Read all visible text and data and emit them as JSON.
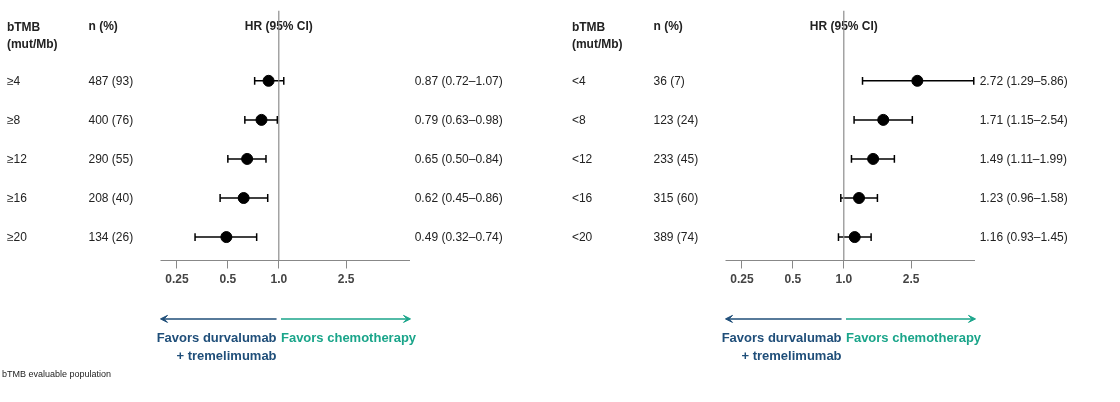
{
  "chart_data": [
    {
      "type": "scatter",
      "title": "HR (95% CI)",
      "ylabel": "bTMB\n(mut/Mb)",
      "orientation": "horizontal",
      "log": "x",
      "marker": "circle",
      "color": "#000000",
      "tick_labels": "x",
      "categories": [
        "≥4",
        "≥8",
        "≥12",
        "≥16",
        "≥20"
      ],
      "values": [
        0.87,
        0.79,
        0.65,
        0.62,
        0.49
      ],
      "errors": [
        [
          0.72,
          1.07
        ],
        [
          0.63,
          0.98
        ],
        [
          0.5,
          0.84
        ],
        [
          0.45,
          0.86
        ],
        [
          0.32,
          0.74
        ]
      ],
      "value_labels": [
        "0.87 (0.72–1.07)",
        "0.79 (0.63–0.98)",
        "0.65 (0.50–0.84)",
        "0.62 (0.45–0.86)",
        "0.49 (0.32–0.74)"
      ],
      "xlim": [
        0.2,
        6.0
      ],
      "xticks": [
        0.25,
        0.5,
        {
          "value": 1,
          "label": "1.0"
        },
        2.5
      ],
      "ref_lines": [
        {
          "axis": "x",
          "value": 1,
          "color": "#8c8c8c"
        }
      ],
      "annotations": [
        "n (%)",
        "487 (93)",
        "400 (76)",
        "290 (55)",
        "208 (40)",
        "134 (26)",
        "Favors durvalumab\n+ tremelimumab",
        "Favors chemotherapy",
        "bTMB evaluable population"
      ]
    },
    {
      "type": "scatter",
      "title": "HR (95% CI)",
      "ylabel": "bTMB\n(mut/Mb)",
      "orientation": "horizontal",
      "log": "x",
      "marker": "circle",
      "color": "#000000",
      "tick_labels": "x",
      "categories": [
        "<4",
        "<8",
        "<12",
        "<16",
        "<20"
      ],
      "values": [
        2.72,
        1.71,
        1.49,
        1.23,
        1.16
      ],
      "errors": [
        [
          1.29,
          5.86
        ],
        [
          1.15,
          2.54
        ],
        [
          1.11,
          1.99
        ],
        [
          0.96,
          1.58
        ],
        [
          0.93,
          1.45
        ]
      ],
      "value_labels": [
        "2.72 (1.29–5.86)",
        "1.71 (1.15–2.54)",
        "1.49 (1.11–1.99)",
        "1.23 (0.96–1.58)",
        "1.16 (0.93–1.45)"
      ],
      "xlim": [
        0.2,
        6.0
      ],
      "xticks": [
        0.25,
        0.5,
        {
          "value": 1,
          "label": "1.0"
        },
        2.5
      ],
      "ref_lines": [
        {
          "axis": "x",
          "value": 1,
          "color": "#8c8c8c"
        }
      ],
      "annotations": [
        "n (%)",
        "36 (7)",
        "123 (24)",
        "233 (45)",
        "315 (60)",
        "389 (74)",
        "Favors durvalumab\n+ tremelimumab",
        "Favors chemotherapy"
      ]
    }
  ]
}
